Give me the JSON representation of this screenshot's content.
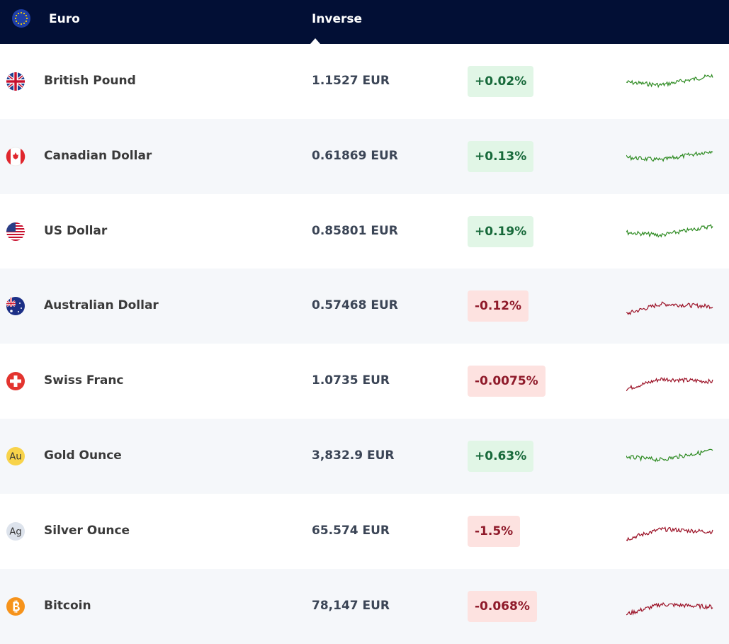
{
  "header": {
    "base": "Euro",
    "column": "Inverse"
  },
  "rows": [
    {
      "name": "British Pound",
      "rate": "1.1527 EUR",
      "change": "+0.02%"
    },
    {
      "name": "Canadian Dollar",
      "rate": "0.61869 EUR",
      "change": "+0.13%"
    },
    {
      "name": "US Dollar",
      "rate": "0.85801 EUR",
      "change": "+0.19%"
    },
    {
      "name": "Australian Dollar",
      "rate": "0.57468 EUR",
      "change": "-0.12%"
    },
    {
      "name": "Swiss Franc",
      "rate": "1.0735 EUR",
      "change": "-0.0075%"
    },
    {
      "name": "Gold Ounce",
      "icon_label": "Au",
      "rate": "3,832.9 EUR",
      "change": "+0.63%"
    },
    {
      "name": "Silver Ounce",
      "icon_label": "Ag",
      "rate": "65.574 EUR",
      "change": "-1.5%"
    },
    {
      "name": "Bitcoin",
      "rate": "78,147 EUR",
      "change": "-0.068%"
    }
  ]
}
